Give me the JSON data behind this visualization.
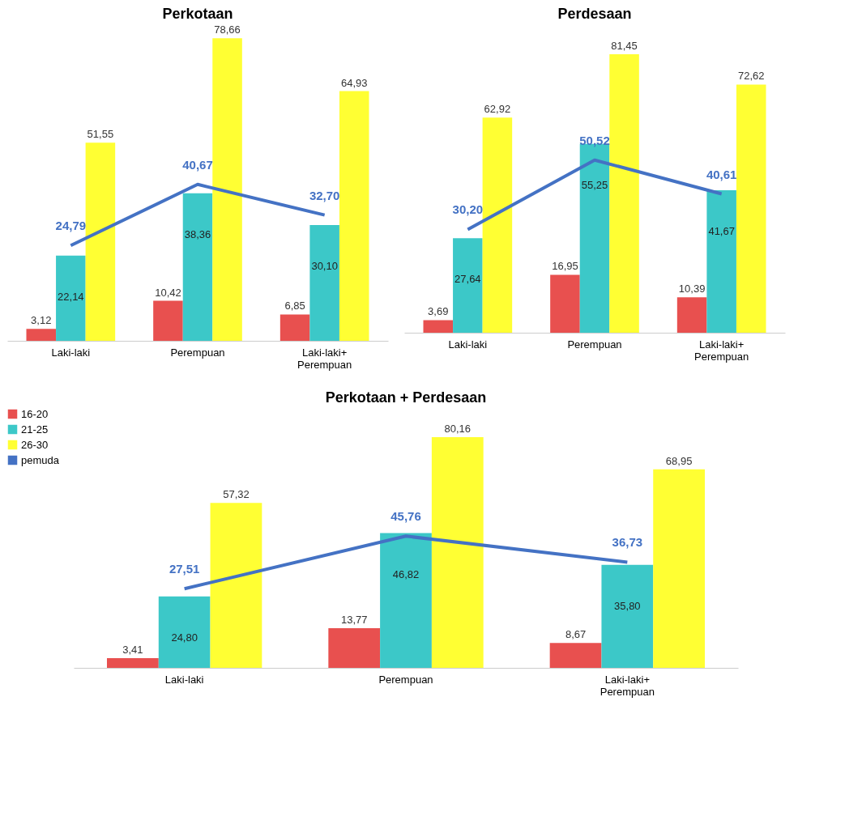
{
  "chart_data": [
    {
      "type": "bar",
      "title": "Perkotaan",
      "categories": [
        "Laki-laki",
        "Perempuan",
        "Laki-laki+ Perempuan"
      ],
      "legend": false,
      "series": [
        {
          "color": "#e8504f",
          "values": [
            3.12,
            10.42,
            6.85
          ],
          "value_labels": [
            "3,12",
            "10,42",
            "6,85"
          ]
        },
        {
          "color": "#3cc8c8",
          "values": [
            22.14,
            38.36,
            30.1
          ],
          "value_labels": [
            "22,14",
            "38,36",
            "30,10"
          ]
        },
        {
          "color": "#ffff33",
          "values": [
            51.55,
            78.66,
            64.93
          ],
          "value_labels": [
            "51,55",
            "78,66",
            "64,93"
          ]
        },
        {
          "type": "line",
          "color": "#4472c4",
          "values": [
            24.79,
            40.67,
            32.7
          ],
          "value_labels": [
            "24,79",
            "40,67",
            "32,70"
          ]
        }
      ]
    },
    {
      "type": "bar",
      "title": "Perdesaan",
      "categories": [
        "Laki-laki",
        "Perempuan",
        "Laki-laki+ Perempuan"
      ],
      "legend": false,
      "series": [
        {
          "color": "#e8504f",
          "values": [
            3.69,
            16.95,
            10.39
          ],
          "value_labels": [
            "3,69",
            "16,95",
            "10,39"
          ]
        },
        {
          "color": "#3cc8c8",
          "values": [
            27.64,
            55.25,
            41.67
          ],
          "value_labels": [
            "27,64",
            "55,25",
            "41,67"
          ]
        },
        {
          "color": "#ffff33",
          "values": [
            62.92,
            81.45,
            72.62
          ],
          "value_labels": [
            "62,92",
            "81,45",
            "72,62"
          ]
        },
        {
          "type": "line",
          "color": "#4472c4",
          "values": [
            30.2,
            50.52,
            40.61
          ],
          "value_labels": [
            "30,20",
            "50,52",
            "40,61"
          ]
        }
      ]
    },
    {
      "type": "bar",
      "title": "Perkotaan + Perdesaan",
      "categories": [
        "Laki-laki",
        "Perempuan",
        "Laki-laki+ Perempuan"
      ],
      "legend": "top left",
      "series": [
        {
          "name": "16-20",
          "color": "#e8504f",
          "values": [
            3.41,
            13.77,
            8.67
          ],
          "value_labels": [
            "3,41",
            "13,77",
            "8,67"
          ]
        },
        {
          "name": "21-25",
          "color": "#3cc8c8",
          "values": [
            24.8,
            46.82,
            35.8
          ],
          "value_labels": [
            "24,80",
            "46,82",
            "35,80"
          ]
        },
        {
          "name": "26-30",
          "color": "#ffff33",
          "values": [
            57.32,
            80.16,
            68.95
          ],
          "value_labels": [
            "57,32",
            "80,16",
            "68,95"
          ]
        },
        {
          "name": "pemuda",
          "type": "line",
          "color": "#4472c4",
          "values": [
            27.51,
            45.76,
            36.73
          ],
          "value_labels": [
            "27,51",
            "45,76",
            "36,73"
          ]
        }
      ]
    }
  ]
}
